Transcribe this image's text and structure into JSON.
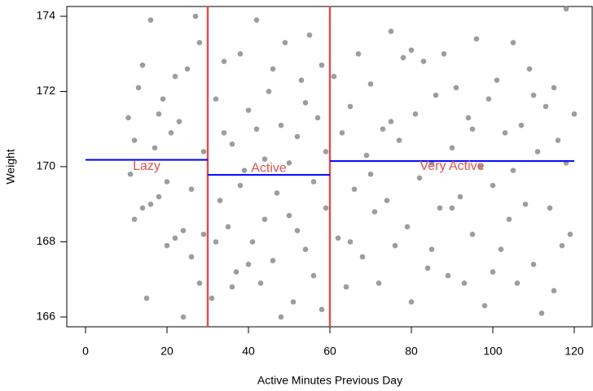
{
  "chart_data": {
    "type": "scatter",
    "xlabel": "Active Minutes Previous Day",
    "ylabel": "Weight",
    "color": "#8c8c8c",
    "x": [
      10.5,
      11,
      12,
      13,
      14,
      15,
      16,
      17,
      18,
      19,
      20,
      21,
      22,
      23,
      24,
      25,
      26,
      27,
      28,
      29,
      12,
      14,
      16,
      18,
      20,
      22,
      24,
      26,
      28,
      29,
      31,
      32,
      33,
      34,
      35,
      36,
      37,
      38,
      39,
      40,
      41,
      42,
      43,
      44,
      45,
      46,
      47,
      48,
      49,
      50,
      51,
      52,
      53,
      54,
      55,
      56,
      57,
      58,
      59,
      32,
      34,
      36,
      38,
      40,
      42,
      44,
      46,
      48,
      50,
      52,
      54,
      56,
      58,
      59,
      61,
      62,
      63,
      64,
      65,
      66,
      67,
      68,
      69,
      70,
      71,
      72,
      73,
      74,
      75,
      76,
      77,
      78,
      79,
      80,
      81,
      82,
      83,
      84,
      85,
      86,
      87,
      88,
      89,
      90,
      91,
      92,
      93,
      94,
      95,
      96,
      97,
      98,
      99,
      100,
      101,
      102,
      103,
      104,
      105,
      106,
      107,
      108,
      109,
      110,
      111,
      112,
      113,
      114,
      115,
      116,
      117,
      118,
      119,
      120,
      65,
      70,
      75,
      80,
      85,
      90,
      95,
      100,
      105,
      110,
      115,
      118
    ],
    "y": [
      171.3,
      169.8,
      168.6,
      172.1,
      168.9,
      166.5,
      173.9,
      170.5,
      169.2,
      171.8,
      167.9,
      170.9,
      168.1,
      171.2,
      166.0,
      172.6,
      169.4,
      174.0,
      166.9,
      170.4,
      170.7,
      172.7,
      169.0,
      171.4,
      169.6,
      172.4,
      168.3,
      167.6,
      173.3,
      168.2,
      166.5,
      171.8,
      169.1,
      172.8,
      168.4,
      170.6,
      167.2,
      173.0,
      169.9,
      171.5,
      168.0,
      173.9,
      166.9,
      170.2,
      172.0,
      167.5,
      169.3,
      171.1,
      173.3,
      168.7,
      166.4,
      170.8,
      172.3,
      167.8,
      173.5,
      169.6,
      171.3,
      166.2,
      168.9,
      168.0,
      170.9,
      166.8,
      169.5,
      167.4,
      171.0,
      168.6,
      172.6,
      166.0,
      170.1,
      168.3,
      171.7,
      167.1,
      172.7,
      170.4,
      172.4,
      168.1,
      170.9,
      166.8,
      171.6,
      169.4,
      173.0,
      167.6,
      170.3,
      172.2,
      168.8,
      166.9,
      171.0,
      169.1,
      173.6,
      167.9,
      170.7,
      172.9,
      168.4,
      166.4,
      171.4,
      169.7,
      172.8,
      167.3,
      170.1,
      171.9,
      168.9,
      173.0,
      167.1,
      170.5,
      172.1,
      169.2,
      166.9,
      171.3,
      168.2,
      173.4,
      170.0,
      166.3,
      171.8,
      169.5,
      172.3,
      167.8,
      170.9,
      168.6,
      173.3,
      166.9,
      171.1,
      169.0,
      172.6,
      167.4,
      170.4,
      166.1,
      171.6,
      168.9,
      172.1,
      170.7,
      167.9,
      174.2,
      168.2,
      171.4,
      168.0,
      169.8,
      171.2,
      173.1,
      167.8,
      168.9,
      171.0,
      167.2,
      169.9,
      171.9,
      166.7,
      170.1
    ],
    "vlines": {
      "color": "#d9534f",
      "x": [
        30,
        60
      ]
    },
    "segments": {
      "color": "#0000ff",
      "x0": [
        0,
        30,
        60
      ],
      "x1": [
        30,
        60,
        120
      ],
      "y": [
        170.18,
        169.78,
        170.15
      ]
    },
    "annotations": {
      "color": "#d9534f",
      "text": [
        "Lazy",
        "Active",
        "Very Active"
      ],
      "x": [
        15,
        45,
        90
      ],
      "y": [
        170.0,
        169.95,
        170.0
      ]
    },
    "xlim": [
      -4.6,
      124.4
    ],
    "ylim": [
      165.74,
      174.26
    ],
    "xticks": [
      0,
      20,
      40,
      60,
      80,
      100,
      120
    ],
    "yticks": [
      166,
      168,
      170,
      172,
      174
    ]
  }
}
